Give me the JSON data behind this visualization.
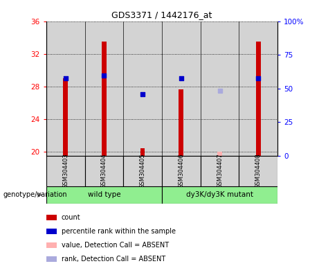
{
  "title": "GDS3371 / 1442176_at",
  "samples": [
    "GSM304403",
    "GSM304404",
    "GSM304405",
    "GSM304406",
    "GSM304407",
    "GSM304408"
  ],
  "ylim_left": [
    19.5,
    36
  ],
  "yticks_left": [
    20,
    24,
    28,
    32,
    36
  ],
  "yticks_right_pct": [
    0,
    25,
    50,
    75,
    100
  ],
  "yticklabels_right": [
    "0",
    "25",
    "50",
    "75",
    "100%"
  ],
  "count_values": [
    29.0,
    33.5,
    20.4,
    27.6,
    20.0,
    33.5
  ],
  "count_absent": [
    false,
    false,
    false,
    false,
    true,
    false
  ],
  "rank_values": [
    29.0,
    29.3,
    27.0,
    29.0,
    27.5,
    29.0
  ],
  "rank_absent": [
    false,
    false,
    false,
    false,
    true,
    false
  ],
  "count_bar_color": "#cc0000",
  "count_absent_bar_color": "#ffb0b0",
  "rank_dot_color": "#0000cc",
  "rank_absent_dot_color": "#aaaadd",
  "background_sample": "#d3d3d3",
  "background_plot": "#ffffff",
  "group_wt_label": "wild type",
  "group_mut_label": "dy3K/dy3K mutant",
  "group_color": "#90ee90",
  "genotype_label": "genotype/variation",
  "legend_items": [
    {
      "label": "count",
      "color": "#cc0000"
    },
    {
      "label": "percentile rank within the sample",
      "color": "#0000cc"
    },
    {
      "label": "value, Detection Call = ABSENT",
      "color": "#ffb0b0"
    },
    {
      "label": "rank, Detection Call = ABSENT",
      "color": "#aaaadd"
    }
  ]
}
